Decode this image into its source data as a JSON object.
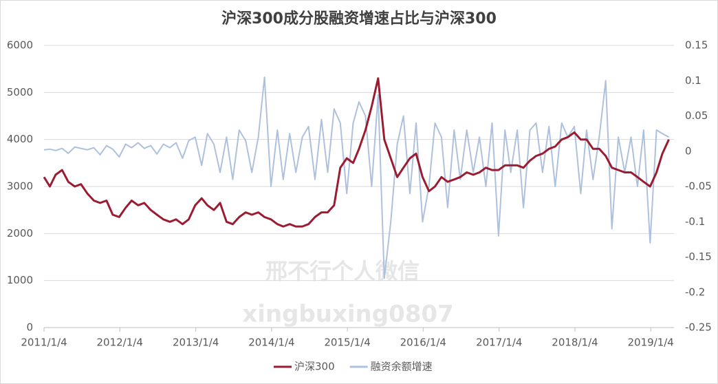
{
  "chart_data": {
    "type": "line",
    "title": "沪深300成分股融资增速占比与沪深300",
    "watermark": [
      "邢不行个人微信",
      "xingbuxing0807"
    ],
    "x": [
      "2011/1/4",
      "2011/2/1",
      "2011/3/1",
      "2011/4/1",
      "2011/5/1",
      "2011/6/1",
      "2011/7/1",
      "2011/8/1",
      "2011/9/1",
      "2011/10/1",
      "2011/11/1",
      "2011/12/1",
      "2012/1/1",
      "2012/2/1",
      "2012/3/1",
      "2012/4/1",
      "2012/5/1",
      "2012/6/1",
      "2012/7/1",
      "2012/8/1",
      "2012/9/1",
      "2012/10/1",
      "2012/11/1",
      "2012/12/1",
      "2013/1/1",
      "2013/2/1",
      "2013/3/1",
      "2013/4/1",
      "2013/5/1",
      "2013/6/1",
      "2013/7/1",
      "2013/8/1",
      "2013/9/1",
      "2013/10/1",
      "2013/11/1",
      "2013/12/1",
      "2014/1/1",
      "2014/2/1",
      "2014/3/1",
      "2014/4/1",
      "2014/5/1",
      "2014/6/1",
      "2014/7/1",
      "2014/8/1",
      "2014/9/1",
      "2014/10/1",
      "2014/11/1",
      "2014/12/1",
      "2015/1/1",
      "2015/2/1",
      "2015/3/1",
      "2015/4/1",
      "2015/5/1",
      "2015/6/1",
      "2015/7/1",
      "2015/8/1",
      "2015/9/1",
      "2015/10/1",
      "2015/11/1",
      "2015/12/1",
      "2016/1/1",
      "2016/2/1",
      "2016/3/1",
      "2016/4/1",
      "2016/5/1",
      "2016/6/1",
      "2016/7/1",
      "2016/8/1",
      "2016/9/1",
      "2016/10/1",
      "2016/11/1",
      "2016/12/1",
      "2017/1/1",
      "2017/2/1",
      "2017/3/1",
      "2017/4/1",
      "2017/5/1",
      "2017/6/1",
      "2017/7/1",
      "2017/8/1",
      "2017/9/1",
      "2017/10/1",
      "2017/11/1",
      "2017/12/1",
      "2018/1/1",
      "2018/2/1",
      "2018/3/1",
      "2018/4/1",
      "2018/5/1",
      "2018/6/1",
      "2018/7/1",
      "2018/8/1",
      "2018/9/1",
      "2018/10/1",
      "2018/11/1",
      "2018/12/1",
      "2019/1/1",
      "2019/2/1",
      "2019/3/1",
      "2019/4/1"
    ],
    "series": [
      {
        "name": "沪深300",
        "color": "#9b1b30",
        "values": [
          3200,
          3000,
          3250,
          3350,
          3100,
          3000,
          3050,
          2850,
          2700,
          2650,
          2700,
          2400,
          2350,
          2550,
          2700,
          2600,
          2650,
          2500,
          2400,
          2300,
          2250,
          2300,
          2200,
          2300,
          2600,
          2750,
          2600,
          2500,
          2650,
          2250,
          2200,
          2350,
          2450,
          2400,
          2450,
          2350,
          2300,
          2200,
          2150,
          2200,
          2150,
          2150,
          2200,
          2350,
          2450,
          2450,
          2600,
          3400,
          3600,
          3500,
          3800,
          4200,
          4700,
          5300,
          4000,
          3600,
          3200,
          3400,
          3600,
          3700,
          3200,
          2900,
          3000,
          3200,
          3100,
          3150,
          3200,
          3300,
          3250,
          3300,
          3400,
          3350,
          3350,
          3450,
          3450,
          3450,
          3400,
          3550,
          3650,
          3700,
          3800,
          3850,
          4000,
          4050,
          4150,
          4000,
          4000,
          3800,
          3800,
          3650,
          3400,
          3350,
          3300,
          3300,
          3200,
          3100,
          3000,
          3300,
          3700,
          4000
        ]
      },
      {
        "name": "融资余额增速",
        "color": "#adc0dd",
        "axis": "y2",
        "values": [
          0.002,
          0.003,
          0.001,
          0.004,
          -0.003,
          0.006,
          0.004,
          0.002,
          0.005,
          -0.005,
          0.008,
          0.003,
          -0.008,
          0.01,
          0.005,
          0.012,
          0.004,
          0.008,
          -0.004,
          0.01,
          0.005,
          0.012,
          -0.01,
          0.015,
          0.02,
          -0.02,
          0.025,
          0.01,
          -0.03,
          0.02,
          -0.04,
          0.03,
          0.015,
          -0.03,
          0.02,
          0.105,
          -0.05,
          0.03,
          -0.04,
          0.025,
          -0.03,
          0.02,
          0.035,
          -0.04,
          0.045,
          -0.03,
          0.06,
          0.04,
          -0.06,
          0.04,
          0.07,
          0.05,
          -0.05,
          0.08,
          -0.18,
          -0.1,
          0.01,
          0.05,
          -0.06,
          0.04,
          -0.1,
          -0.05,
          0.04,
          0.02,
          -0.08,
          0.03,
          -0.04,
          0.03,
          -0.03,
          0.02,
          -0.05,
          0.04,
          -0.12,
          0.03,
          -0.03,
          0.03,
          -0.08,
          0.03,
          0.04,
          -0.03,
          0.035,
          -0.05,
          0.04,
          0.02,
          0.035,
          -0.06,
          0.03,
          -0.04,
          0.02,
          0.1,
          -0.11,
          0.02,
          -0.03,
          0.02,
          -0.05,
          0.03,
          -0.13,
          0.03,
          0.025,
          0.02
        ]
      }
    ],
    "xlim": [
      "2011/1/4",
      "2019/4/26"
    ],
    "xticks": [
      "2011/1/4",
      "2012/1/4",
      "2013/1/4",
      "2014/1/4",
      "2015/1/4",
      "2016/1/4",
      "2017/1/4",
      "2018/1/4",
      "2019/1/4"
    ],
    "ylim": [
      0,
      6000
    ],
    "yticks": [
      0,
      1000,
      2000,
      3000,
      4000,
      5000,
      6000
    ],
    "y2lim": [
      -0.25,
      0.15
    ],
    "y2ticks": [
      -0.25,
      -0.2,
      -0.15,
      -0.1,
      -0.05,
      0,
      0.05,
      0.1,
      0.15
    ],
    "grid": true,
    "legend": "bottom"
  }
}
